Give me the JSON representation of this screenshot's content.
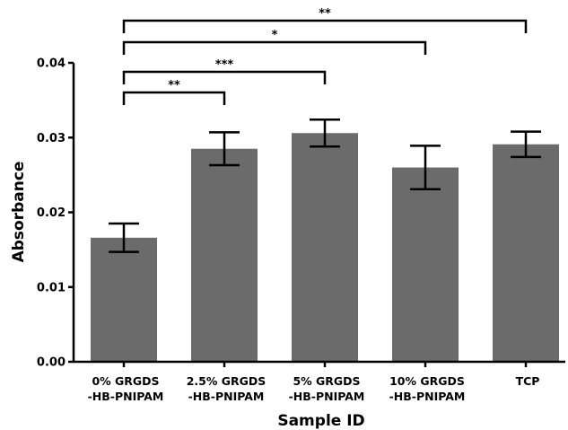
{
  "chart_data": {
    "type": "bar",
    "title": "",
    "xlabel": "Sample ID",
    "ylabel": "Absorbance",
    "ylim": [
      0,
      0.04
    ],
    "yticks": [
      "0.00",
      "0.01",
      "0.02",
      "0.03",
      "0.04"
    ],
    "categories": [
      [
        "0% GRGDS",
        "-HB-PNIPAM"
      ],
      [
        "2.5% GRGDS",
        "-HB-PNIPAM"
      ],
      [
        "5% GRGDS",
        "-HB-PNIPAM"
      ],
      [
        "10% GRGDS",
        "-HB-PNIPAM"
      ],
      [
        "TCP"
      ]
    ],
    "values": [
      0.0166,
      0.0285,
      0.0306,
      0.026,
      0.0291
    ],
    "errors": [
      0.0019,
      0.0022,
      0.0018,
      0.0029,
      0.0017
    ],
    "significance": [
      {
        "from": 0,
        "to": 1,
        "label": "**"
      },
      {
        "from": 0,
        "to": 2,
        "label": "***"
      },
      {
        "from": 0,
        "to": 3,
        "label": "*"
      },
      {
        "from": 0,
        "to": 4,
        "label": "**"
      }
    ],
    "colors": {
      "bar": "#6b6b6b",
      "axis": "#000000"
    },
    "grid": false,
    "legend": "none"
  }
}
